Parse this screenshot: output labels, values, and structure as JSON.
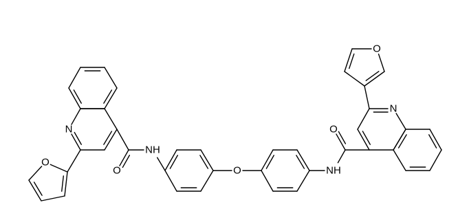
{
  "atoms": [
    "N",
    "O",
    "O",
    "NH",
    "O",
    "NH",
    "O",
    "N",
    "O"
  ]
}
